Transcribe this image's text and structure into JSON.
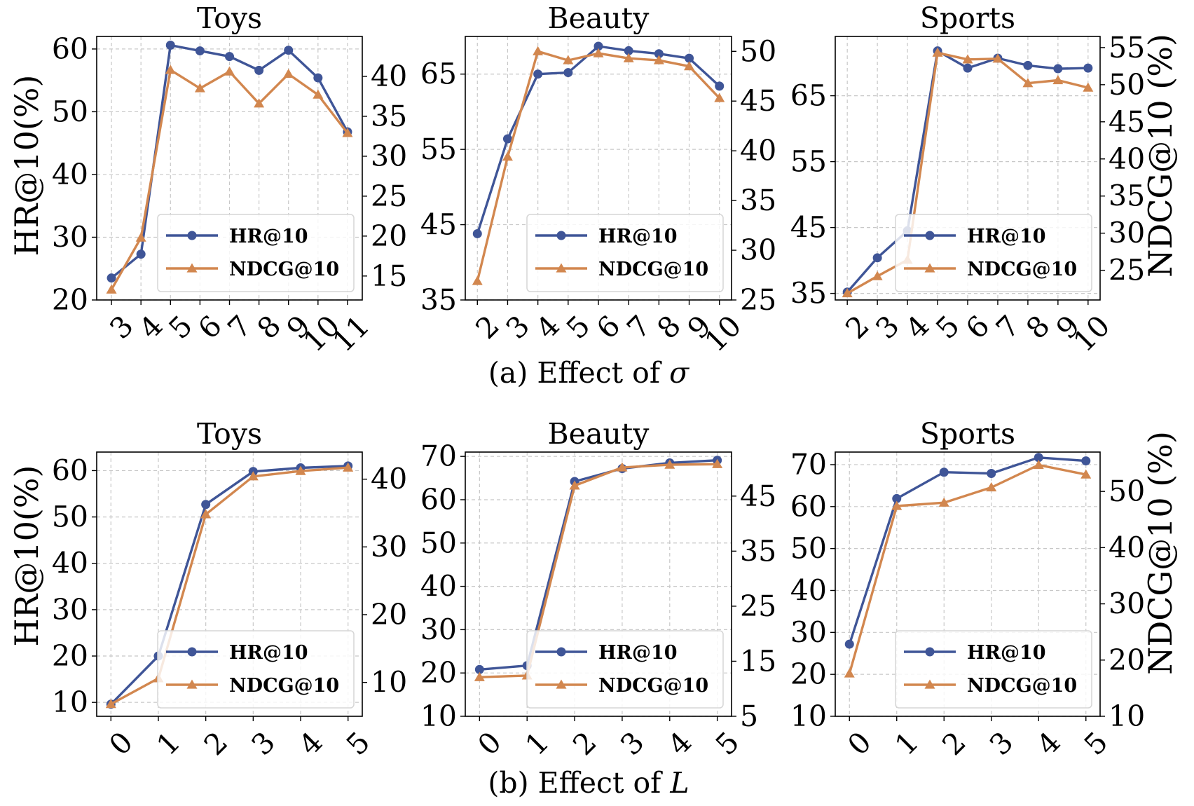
{
  "colors": {
    "hr": "#3f5597",
    "ndcg": "#d2874f"
  },
  "figure": {
    "caption_a": {
      "prefix": "(a) Effect of ",
      "symbol": "σ"
    },
    "caption_b": {
      "prefix": "(b) Effect of ",
      "symbol": "L"
    },
    "ylabel_left": "HR@10(%)",
    "ylabel_right": "NDCG@10 (%)"
  },
  "chart_data": [
    {
      "id": "a-toys",
      "type": "line",
      "title": "Toys",
      "categories": [
        "3",
        "4",
        "5",
        "6",
        "7",
        "8",
        "9",
        "10",
        "11"
      ],
      "x": [
        3,
        4,
        5,
        6,
        7,
        8,
        9,
        10,
        11
      ],
      "xlim": [
        2.5,
        11.5
      ],
      "ylim_left": [
        20,
        62
      ],
      "yticks_left": [
        20,
        30,
        40,
        50,
        60
      ],
      "ylim_right": [
        12,
        45
      ],
      "yticks_right": [
        15,
        20,
        25,
        30,
        35,
        40
      ],
      "series": [
        {
          "name": "HR@10",
          "axis": "left",
          "marker": "circle",
          "values": [
            23.5,
            27.3,
            60.6,
            59.7,
            58.8,
            56.6,
            59.8,
            55.4,
            46.8
          ]
        },
        {
          "name": "NDCG@10",
          "axis": "right",
          "marker": "triangle",
          "values": [
            13.3,
            19.8,
            40.8,
            38.5,
            40.6,
            36.6,
            40.3,
            37.7,
            32.9
          ]
        }
      ],
      "legend": {
        "location": "lower-right",
        "entries": [
          "HR@10",
          "NDCG@10"
        ]
      }
    },
    {
      "id": "a-beauty",
      "type": "line",
      "title": "Beauty",
      "categories": [
        "2",
        "3",
        "4",
        "5",
        "6",
        "7",
        "8",
        "9",
        "10"
      ],
      "x": [
        2,
        3,
        4,
        5,
        6,
        7,
        8,
        9,
        10
      ],
      "xlim": [
        1.6,
        10.4
      ],
      "ylim_left": [
        35,
        70
      ],
      "yticks_left": [
        35,
        45,
        55,
        65
      ],
      "ylim_right": [
        25,
        51.5
      ],
      "yticks_right": [
        25,
        30,
        35,
        40,
        45,
        50
      ],
      "series": [
        {
          "name": "HR@10",
          "axis": "left",
          "marker": "circle",
          "values": [
            43.8,
            56.4,
            65,
            65.2,
            68.7,
            68.1,
            67.7,
            67.1,
            63.4
          ]
        },
        {
          "name": "NDCG@10",
          "axis": "right",
          "marker": "triangle",
          "values": [
            26.9,
            39.4,
            50,
            49.1,
            49.8,
            49.3,
            49.1,
            48.5,
            45.3
          ]
        }
      ],
      "legend": {
        "location": "lower-right",
        "entries": [
          "HR@10",
          "NDCG@10"
        ]
      }
    },
    {
      "id": "a-sports",
      "type": "line",
      "title": "Sports",
      "categories": [
        "2",
        "3",
        "4",
        "5",
        "6",
        "7",
        "8",
        "9",
        "10"
      ],
      "x": [
        2,
        3,
        4,
        5,
        6,
        7,
        8,
        9,
        10
      ],
      "xlim": [
        1.6,
        10.4
      ],
      "ylim_left": [
        34,
        74
      ],
      "yticks_left": [
        35,
        45,
        55,
        65
      ],
      "ylim_right": [
        21,
        56.5
      ],
      "yticks_right": [
        25,
        30,
        35,
        40,
        45,
        50,
        55
      ],
      "series": [
        {
          "name": "HR@10",
          "axis": "left",
          "marker": "circle",
          "values": [
            35.2,
            40.4,
            44.5,
            71.8,
            69.2,
            70.7,
            69.6,
            69.1,
            69.2
          ]
        },
        {
          "name": "NDCG@10",
          "axis": "right",
          "marker": "triangle",
          "values": [
            21.9,
            24.2,
            26.4,
            54.3,
            53.4,
            53.5,
            50.2,
            50.6,
            49.6
          ]
        }
      ],
      "legend": {
        "location": "lower-right",
        "entries": [
          "HR@10",
          "NDCG@10"
        ]
      }
    },
    {
      "id": "b-toys",
      "type": "line",
      "title": "Toys",
      "categories": [
        "0",
        "1",
        "2",
        "3",
        "4",
        "5"
      ],
      "x": [
        0,
        1,
        2,
        3,
        4,
        5
      ],
      "xlim": [
        -0.3,
        5.3
      ],
      "ylim_left": [
        7,
        64
      ],
      "yticks_left": [
        10,
        20,
        30,
        40,
        50,
        60
      ],
      "ylim_right": [
        5,
        44
      ],
      "yticks_right": [
        10,
        20,
        30,
        40
      ],
      "series": [
        {
          "name": "HR@10",
          "axis": "left",
          "marker": "circle",
          "values": [
            9.6,
            20,
            52.7,
            59.8,
            60.6,
            61
          ]
        },
        {
          "name": "NDCG@10",
          "axis": "right",
          "marker": "triangle",
          "values": [
            6.8,
            10.6,
            34.8,
            40.4,
            41.2,
            41.7
          ]
        }
      ],
      "legend": {
        "location": "lower-right",
        "entries": [
          "HR@10",
          "NDCG@10"
        ]
      }
    },
    {
      "id": "b-beauty",
      "type": "line",
      "title": "Beauty",
      "categories": [
        "0",
        "1",
        "2",
        "3",
        "4",
        "5"
      ],
      "x": [
        0,
        1,
        2,
        3,
        4,
        5
      ],
      "xlim": [
        -0.3,
        5.3
      ],
      "ylim_left": [
        10,
        71
      ],
      "yticks_left": [
        10,
        20,
        30,
        40,
        50,
        60,
        70
      ],
      "ylim_right": [
        5,
        53
      ],
      "yticks_right": [
        5,
        15,
        25,
        35,
        45
      ],
      "series": [
        {
          "name": "HR@10",
          "axis": "left",
          "marker": "circle",
          "values": [
            20.8,
            21.7,
            64.2,
            67.2,
            68.5,
            69.1
          ]
        },
        {
          "name": "NDCG@10",
          "axis": "right",
          "marker": "triangle",
          "values": [
            12.1,
            12.4,
            46.9,
            50.2,
            50.7,
            50.8
          ]
        }
      ],
      "legend": {
        "location": "lower-right",
        "entries": [
          "HR@10",
          "NDCG@10"
        ]
      }
    },
    {
      "id": "b-sports",
      "type": "line",
      "title": "Sports",
      "categories": [
        "0",
        "1",
        "2",
        "3",
        "4",
        "5"
      ],
      "x": [
        0,
        1,
        2,
        3,
        4,
        5
      ],
      "xlim": [
        -0.3,
        5.3
      ],
      "ylim_left": [
        10,
        73
      ],
      "yticks_left": [
        10,
        20,
        30,
        40,
        50,
        60,
        70
      ],
      "ylim_right": [
        10,
        57
      ],
      "yticks_right": [
        10,
        20,
        30,
        40,
        50
      ],
      "series": [
        {
          "name": "HR@10",
          "axis": "left",
          "marker": "circle",
          "values": [
            27.2,
            61.9,
            68.2,
            67.9,
            71.7,
            70.9
          ]
        },
        {
          "name": "NDCG@10",
          "axis": "right",
          "marker": "triangle",
          "values": [
            17.6,
            47.4,
            48,
            50.7,
            54.7,
            53
          ]
        }
      ],
      "legend": {
        "location": "lower-right",
        "entries": [
          "HR@10",
          "NDCG@10"
        ]
      }
    }
  ]
}
